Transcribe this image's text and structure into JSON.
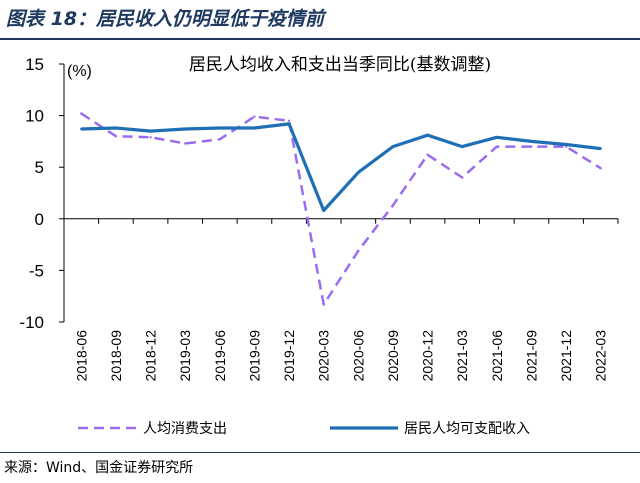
{
  "figure": {
    "title": "图表 18：居民收入仍明显低于疫情前",
    "source": "来源：Wind、国金证券研究所"
  },
  "chart_data": {
    "type": "line",
    "title": "居民人均收入和支出当季同比(基数调整)",
    "ylabel": "(%)",
    "ylim": [
      -10,
      15
    ],
    "yticks": [
      15,
      10,
      5,
      0,
      -5,
      -10
    ],
    "grid": false,
    "legend_position": "bottom",
    "categories": [
      "2018-06",
      "2018-09",
      "2018-12",
      "2019-03",
      "2019-06",
      "2019-09",
      "2019-12",
      "2020-03",
      "2020-06",
      "2020-09",
      "2020-12",
      "2021-03",
      "2021-06",
      "2021-09",
      "2021-12",
      "2022-03"
    ],
    "series": [
      {
        "name": "人均消费支出",
        "style": "dashed",
        "color": "#9b6cf0",
        "values": [
          10.2,
          8.0,
          7.9,
          7.3,
          7.7,
          9.9,
          9.5,
          -8.3,
          -3.1,
          1.3,
          6.2,
          4.0,
          7.0,
          7.0,
          7.0,
          4.9
        ]
      },
      {
        "name": "居民人均可支配收入",
        "style": "solid",
        "color": "#1f6fb6",
        "values": [
          8.7,
          8.8,
          8.5,
          8.7,
          8.8,
          8.8,
          9.2,
          0.8,
          4.5,
          7.0,
          8.1,
          7.0,
          7.9,
          7.5,
          7.2,
          6.8
        ]
      }
    ]
  }
}
